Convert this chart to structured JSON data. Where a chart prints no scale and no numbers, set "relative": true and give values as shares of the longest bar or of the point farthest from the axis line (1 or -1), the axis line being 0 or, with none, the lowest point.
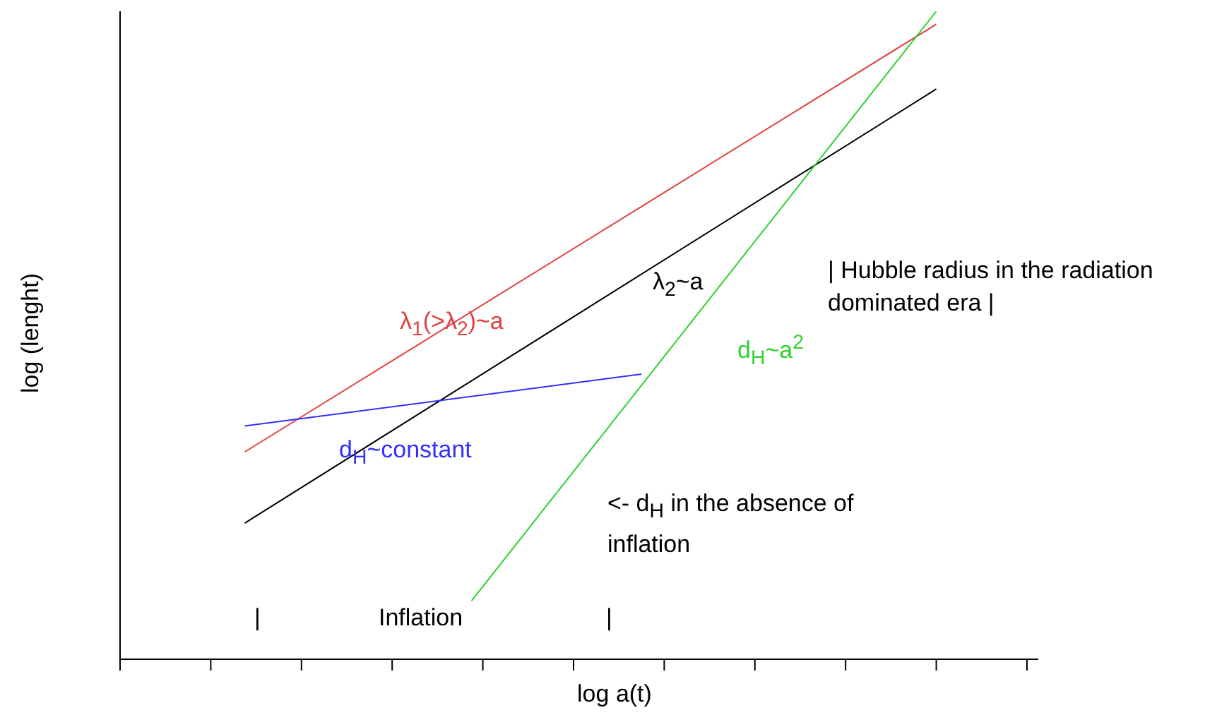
{
  "chart_data": {
    "type": "line",
    "relative": true,
    "xlabel": "log a(t)",
    "ylabel": "log (lenght)",
    "categories": [
      null,
      null,
      null,
      null,
      null,
      null,
      null,
      null,
      null,
      null,
      null,
      null,
      null,
      null,
      null,
      null,
      null,
      null,
      null,
      null,
      null,
      null,
      null,
      null,
      null,
      null,
      null,
      null,
      null,
      null,
      null,
      null,
      null,
      null,
      null,
      null,
      null,
      null,
      null,
      null,
      null,
      null,
      null,
      null,
      null,
      null,
      null,
      null,
      null,
      null,
      null,
      null,
      null,
      null,
      null,
      null,
      null,
      null,
      null,
      null,
      null,
      null,
      null,
      null,
      null,
      null,
      null,
      null,
      null,
      null,
      null,
      null,
      null,
      null,
      null,
      null,
      null,
      null,
      null,
      null,
      null
    ],
    "series": [
      {
        "name": "λ$_{1}$(>λ$_{2}$)~a",
        "color": "#e04040",
        "values": [
          null,
          null,
          null,
          null,
          null,
          null,
          null,
          null,
          null,
          null,
          null,
          0.32,
          null,
          null,
          null,
          null,
          null,
          null,
          null,
          null,
          null,
          null,
          null,
          null,
          null,
          null,
          null,
          null,
          null,
          null,
          null,
          null,
          null,
          null,
          null,
          null,
          null,
          null,
          null,
          null,
          null,
          null,
          null,
          null,
          null,
          null,
          null,
          null,
          null,
          null,
          null,
          null,
          null,
          null,
          null,
          null,
          null,
          null,
          null,
          null,
          null,
          null,
          null,
          null,
          null,
          null,
          null,
          null,
          null,
          null,
          null,
          null,
          0.98,
          null,
          null,
          null,
          null,
          null,
          null,
          null,
          null
        ]
      },
      {
        "name": "λ$_{2}$~a",
        "color": "#000000",
        "values": [
          null,
          null,
          null,
          null,
          null,
          null,
          null,
          null,
          null,
          null,
          null,
          0.21,
          null,
          null,
          null,
          null,
          null,
          null,
          null,
          null,
          null,
          null,
          null,
          null,
          null,
          null,
          null,
          null,
          null,
          null,
          null,
          null,
          null,
          null,
          null,
          null,
          null,
          null,
          null,
          null,
          null,
          null,
          null,
          null,
          null,
          null,
          null,
          null,
          null,
          null,
          null,
          null,
          null,
          null,
          null,
          null,
          null,
          null,
          null,
          null,
          null,
          null,
          null,
          null,
          null,
          null,
          null,
          null,
          null,
          null,
          null,
          null,
          0.88,
          null,
          null,
          null,
          null,
          null,
          null,
          null,
          null
        ]
      },
      {
        "name": "d$_{H}$~constant",
        "color": "#3030ff",
        "values": [
          null,
          null,
          null,
          null,
          null,
          null,
          null,
          null,
          null,
          null,
          null,
          0.36,
          null,
          null,
          null,
          null,
          null,
          null,
          null,
          null,
          null,
          null,
          null,
          null,
          null,
          null,
          null,
          null,
          null,
          null,
          null,
          null,
          null,
          null,
          null,
          null,
          null,
          null,
          null,
          null,
          null,
          null,
          null,
          null,
          null,
          null,
          0.44,
          null,
          null,
          null,
          null,
          null,
          null,
          null,
          null,
          null,
          null,
          null,
          null,
          null,
          null,
          null,
          null,
          null,
          null,
          null,
          null,
          null,
          null,
          null,
          null,
          null,
          null,
          null,
          null,
          null,
          null,
          null,
          null,
          null,
          null
        ]
      },
      {
        "name": "d$_{H}$~a$^{2}$",
        "color": "#30d030",
        "values": [
          null,
          null,
          null,
          null,
          null,
          null,
          null,
          null,
          null,
          null,
          null,
          null,
          null,
          null,
          null,
          null,
          null,
          null,
          null,
          null,
          null,
          null,
          null,
          null,
          null,
          null,
          null,
          null,
          null,
          null,
          null,
          0.09,
          null,
          null,
          null,
          null,
          null,
          null,
          null,
          null,
          null,
          null,
          null,
          null,
          null,
          null,
          null,
          null,
          null,
          null,
          null,
          null,
          null,
          null,
          null,
          null,
          null,
          null,
          null,
          null,
          null,
          null,
          null,
          null,
          null,
          null,
          null,
          null,
          null,
          null,
          null,
          null,
          1,
          null,
          null,
          null,
          null,
          null,
          null,
          null,
          null
        ]
      }
    ],
    "annotations": [
      "| Hubble radius in the radiation dominated era |",
      "<- d$_{H}$ in the absence of inflation",
      "|",
      "Inflation",
      "|"
    ]
  }
}
